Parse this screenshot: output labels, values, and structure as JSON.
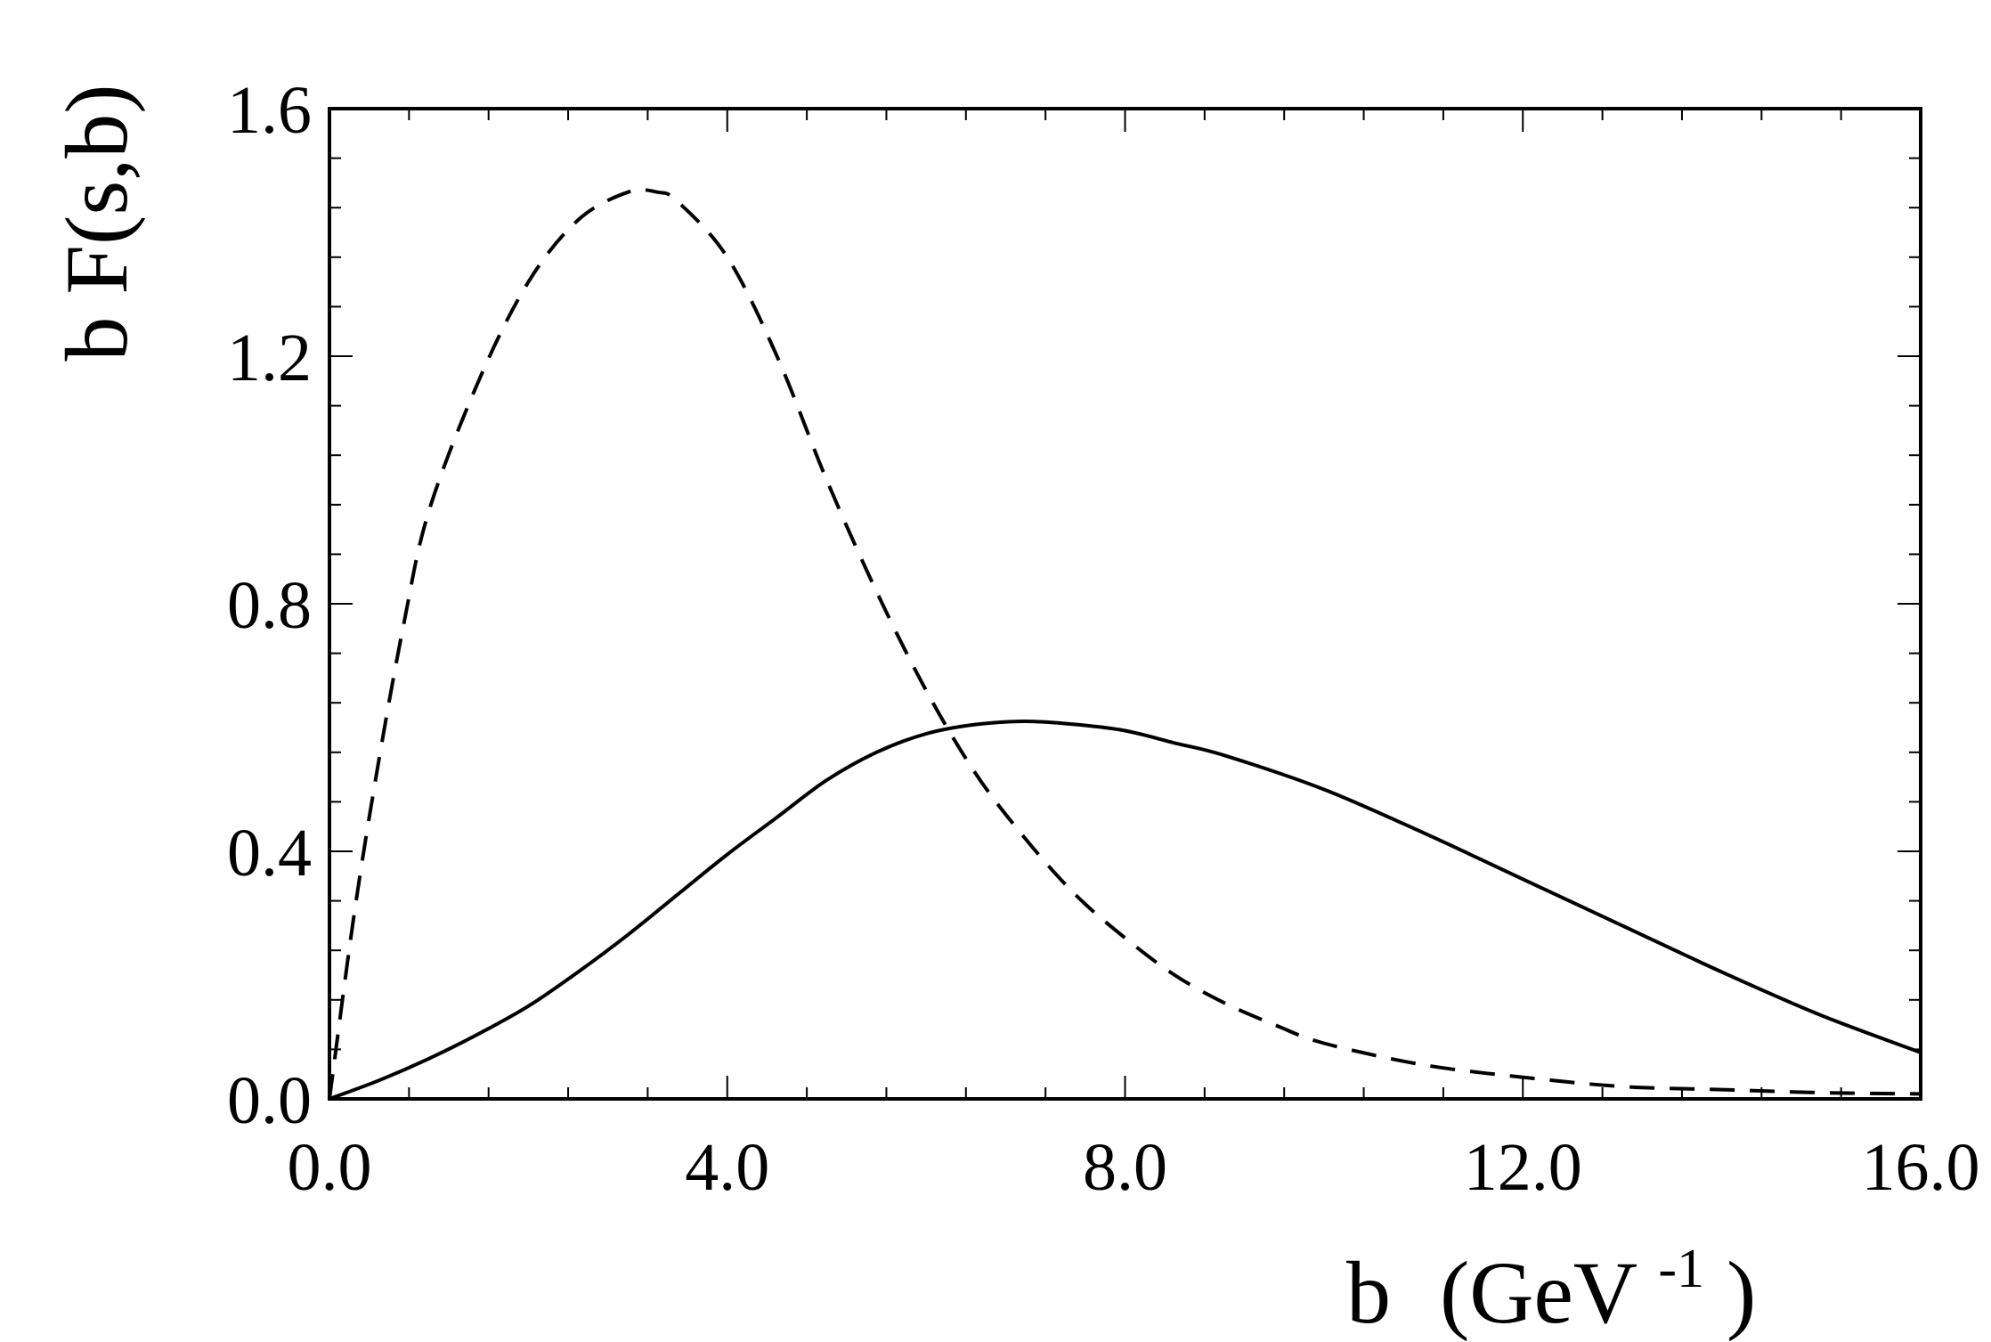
{
  "chart_data": {
    "type": "line",
    "title": "",
    "xlabel": "b",
    "xlabel_unit_open": "(GeV",
    "xlabel_unit_sup": "-1",
    "xlabel_unit_close": ")",
    "ylabel": "b F(s,b)",
    "xlim": [
      0,
      16
    ],
    "ylim": [
      0,
      1.6
    ],
    "xticks": [
      "0.0",
      "4.0",
      "8.0",
      "12.0",
      "16.0"
    ],
    "yticks": [
      "0.0",
      "0.4",
      "0.8",
      "1.2",
      "1.6"
    ],
    "xtick_values": [
      0,
      4,
      8,
      12,
      16
    ],
    "ytick_values": [
      0,
      0.4,
      0.8,
      1.2,
      1.6
    ],
    "grid": false,
    "legend": "none",
    "series": [
      {
        "style": "solid",
        "color": "#000000",
        "x": [
          0,
          0.5,
          1,
          1.5,
          2,
          2.5,
          3,
          3.5,
          4,
          4.5,
          5,
          5.5,
          6,
          6.5,
          7,
          7.5,
          8,
          8.5,
          9,
          10,
          11,
          12,
          13,
          14,
          15,
          16
        ],
        "y": [
          0,
          0.03,
          0.065,
          0.105,
          0.15,
          0.205,
          0.265,
          0.33,
          0.395,
          0.455,
          0.515,
          0.56,
          0.59,
          0.605,
          0.61,
          0.605,
          0.595,
          0.575,
          0.555,
          0.5,
          0.43,
          0.355,
          0.28,
          0.205,
          0.135,
          0.075
        ]
      },
      {
        "style": "dashed",
        "color": "#000000",
        "x": [
          0,
          0.25,
          0.5,
          0.75,
          1,
          1.5,
          2,
          2.5,
          3,
          3.3,
          3.5,
          4,
          4.5,
          5,
          5.5,
          6,
          6.5,
          7,
          7.5,
          8,
          8.5,
          9,
          9.5,
          10,
          11,
          12,
          13,
          14,
          15,
          16
        ],
        "y": [
          0,
          0.3,
          0.55,
          0.77,
          0.95,
          1.16,
          1.32,
          1.42,
          1.465,
          1.465,
          1.45,
          1.36,
          1.2,
          1.0,
          0.82,
          0.66,
          0.525,
          0.42,
          0.33,
          0.26,
          0.2,
          0.155,
          0.12,
          0.09,
          0.055,
          0.035,
          0.02,
          0.015,
          0.01,
          0.008
        ]
      }
    ]
  }
}
